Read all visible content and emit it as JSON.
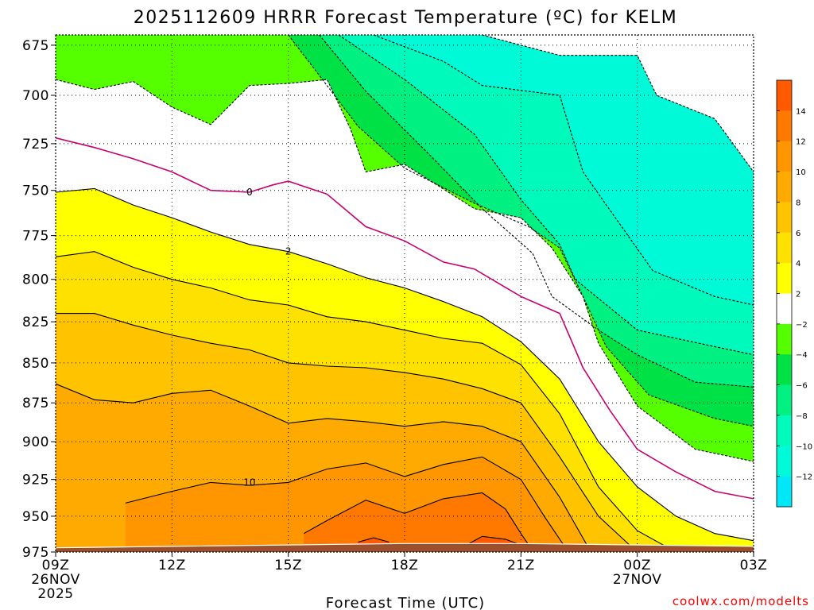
{
  "chart_data": {
    "type": "contour",
    "title": "2025112609 HRRR Forecast Temperature (ºC) for KELM",
    "xlabel": "Forecast Time (UTC)",
    "ylabel": "",
    "credit": "coolwx.com/modelts",
    "y_axis": {
      "scale": "pressure-hPa",
      "range": [
        975,
        670
      ],
      "ticks": [
        675,
        700,
        725,
        750,
        775,
        800,
        825,
        850,
        875,
        900,
        925,
        950,
        975
      ]
    },
    "x_axis": {
      "range_hours": [
        9,
        27
      ],
      "ticks": [
        {
          "hour": 9,
          "label": "09Z",
          "sub": [
            "26NOV",
            "2025"
          ]
        },
        {
          "hour": 12,
          "label": "12Z",
          "sub": []
        },
        {
          "hour": 15,
          "label": "15Z",
          "sub": []
        },
        {
          "hour": 18,
          "label": "18Z",
          "sub": []
        },
        {
          "hour": 21,
          "label": "21Z",
          "sub": []
        },
        {
          "hour": 24,
          "label": "00Z",
          "sub": [
            "27NOV"
          ]
        },
        {
          "hour": 27,
          "label": "03Z",
          "sub": []
        }
      ]
    },
    "grid": true,
    "colorbar": {
      "labels": [
        "14",
        "12",
        "10",
        "8",
        "6",
        "4",
        "2",
        "−2",
        "−4",
        "−6",
        "−8",
        "−10",
        "−12"
      ],
      "bands": [
        {
          "min": 14,
          "max": 16,
          "color": "#ff5a00"
        },
        {
          "min": 12,
          "max": 14,
          "color": "#ff7800"
        },
        {
          "min": 10,
          "max": 12,
          "color": "#ff9600"
        },
        {
          "min": 8,
          "max": 10,
          "color": "#ffaa00"
        },
        {
          "min": 6,
          "max": 8,
          "color": "#ffc300"
        },
        {
          "min": 4,
          "max": 6,
          "color": "#ffe100"
        },
        {
          "min": 2,
          "max": 4,
          "color": "#ffff00"
        },
        {
          "min": -2,
          "max": 2,
          "color": "#ffffff"
        },
        {
          "min": -4,
          "max": -2,
          "color": "#55ff00"
        },
        {
          "min": -6,
          "max": -4,
          "color": "#00e146"
        },
        {
          "min": -8,
          "max": -6,
          "color": "#00f081"
        },
        {
          "min": -10,
          "max": -8,
          "color": "#00fabb"
        },
        {
          "min": -12,
          "max": -10,
          "color": "#00fad7"
        },
        {
          "min": -14,
          "max": -12,
          "color": "#00e8f8"
        }
      ]
    },
    "zero_line_color": "#c8006e",
    "ground_color": "#9c4f2c",
    "isotherm_labels": [
      {
        "value": 0,
        "hour": 14.0,
        "p": 751
      },
      {
        "value": 2,
        "hour": 15.0,
        "p": 784
      },
      {
        "value": 10,
        "hour": 14.0,
        "p": 927
      }
    ],
    "isotherms": [
      {
        "value": -12,
        "style": "dashed",
        "points": [
          [
            20.0,
            670
          ],
          [
            22.0,
            680
          ],
          [
            24.0,
            680
          ],
          [
            24.5,
            700
          ],
          [
            26.0,
            712
          ],
          [
            27.0,
            740
          ]
        ]
      },
      {
        "value": -10,
        "style": "dashed",
        "points": [
          [
            17.2,
            670
          ],
          [
            19.0,
            683
          ],
          [
            20.0,
            695
          ],
          [
            22.0,
            700
          ],
          [
            22.6,
            740
          ],
          [
            24.4,
            795
          ],
          [
            26.0,
            810
          ],
          [
            27.0,
            815
          ]
        ]
      },
      {
        "value": -8,
        "style": "dashed",
        "points": [
          [
            16.3,
            670
          ],
          [
            18.0,
            692
          ],
          [
            19.8,
            720
          ],
          [
            21.0,
            755
          ],
          [
            22.0,
            780
          ],
          [
            22.4,
            800
          ],
          [
            24.0,
            830
          ],
          [
            26.0,
            840
          ],
          [
            27.0,
            845
          ]
        ]
      },
      {
        "value": -6,
        "style": "dashed",
        "points": [
          [
            15.8,
            670
          ],
          [
            17.0,
            698
          ],
          [
            18.6,
            730
          ],
          [
            20.0,
            760
          ],
          [
            21.3,
            785
          ],
          [
            21.8,
            810
          ],
          [
            23.0,
            830
          ],
          [
            24.0,
            845
          ],
          [
            25.5,
            862
          ],
          [
            27.0,
            865
          ]
        ]
      },
      {
        "value": -4,
        "style": "dashed",
        "points": [
          [
            15.0,
            670
          ],
          [
            15.8,
            690
          ],
          [
            16.8,
            716
          ],
          [
            18.0,
            738
          ],
          [
            19.8,
            757
          ],
          [
            21.2,
            770
          ],
          [
            22.0,
            782
          ],
          [
            22.6,
            810
          ],
          [
            23.2,
            840
          ],
          [
            24.3,
            870
          ],
          [
            26.0,
            885
          ],
          [
            27.0,
            890
          ]
        ]
      },
      {
        "value": -2,
        "style": "dashed",
        "points": [
          [
            9.0,
            692
          ],
          [
            10.0,
            697
          ],
          [
            11.0,
            693
          ],
          [
            12.0,
            706
          ],
          [
            13.0,
            715
          ],
          [
            14.0,
            695
          ],
          [
            15.0,
            694
          ],
          [
            16.0,
            692
          ],
          [
            16.6,
            717
          ],
          [
            17.0,
            740
          ],
          [
            18.0,
            736
          ],
          [
            19.8,
            760
          ],
          [
            21.0,
            765
          ],
          [
            21.8,
            782
          ],
          [
            22.6,
            810
          ],
          [
            23.0,
            838
          ],
          [
            24.0,
            877
          ],
          [
            25.5,
            905
          ],
          [
            27.0,
            913
          ]
        ]
      },
      {
        "value": 0,
        "style": "solid",
        "zero": true,
        "points": [
          [
            9.0,
            722
          ],
          [
            10.0,
            727
          ],
          [
            11.0,
            733
          ],
          [
            12.0,
            740
          ],
          [
            13.0,
            750
          ],
          [
            14.0,
            751
          ],
          [
            14.6,
            747
          ],
          [
            15.0,
            745
          ],
          [
            16.0,
            752
          ],
          [
            17.0,
            770
          ],
          [
            18.0,
            778
          ],
          [
            19.0,
            790
          ],
          [
            19.8,
            794
          ],
          [
            21.0,
            810
          ],
          [
            22.0,
            820
          ],
          [
            22.6,
            853
          ],
          [
            23.3,
            880
          ],
          [
            24.0,
            905
          ],
          [
            25.0,
            920
          ],
          [
            26.0,
            933
          ],
          [
            27.0,
            938
          ]
        ]
      },
      {
        "value": 2,
        "style": "solid",
        "points": [
          [
            9.0,
            751
          ],
          [
            10.0,
            749
          ],
          [
            11.0,
            758
          ],
          [
            12.0,
            765
          ],
          [
            13.0,
            773
          ],
          [
            14.0,
            780
          ],
          [
            15.0,
            784
          ],
          [
            16.0,
            791
          ],
          [
            17.0,
            799
          ],
          [
            18.0,
            805
          ],
          [
            19.0,
            813
          ],
          [
            20.0,
            822
          ],
          [
            21.0,
            837
          ],
          [
            22.0,
            860
          ],
          [
            23.0,
            900
          ],
          [
            24.0,
            930
          ],
          [
            25.0,
            950
          ],
          [
            26.0,
            962
          ],
          [
            27.0,
            967
          ]
        ]
      },
      {
        "value": 4,
        "style": "solid",
        "points": [
          [
            9.0,
            787
          ],
          [
            10.0,
            784
          ],
          [
            11.0,
            793
          ],
          [
            12.0,
            800
          ],
          [
            13.0,
            805
          ],
          [
            14.0,
            812
          ],
          [
            15.0,
            815
          ],
          [
            16.0,
            822
          ],
          [
            17.0,
            825
          ],
          [
            18.0,
            830
          ],
          [
            19.0,
            835
          ],
          [
            20.0,
            838
          ],
          [
            21.0,
            851
          ],
          [
            22.0,
            882
          ],
          [
            23.0,
            930
          ],
          [
            24.0,
            960
          ],
          [
            24.8,
            972
          ]
        ]
      },
      {
        "value": 6,
        "style": "solid",
        "points": [
          [
            9.0,
            820
          ],
          [
            10.0,
            820
          ],
          [
            11.0,
            827
          ],
          [
            12.0,
            833
          ],
          [
            13.0,
            838
          ],
          [
            14.0,
            842
          ],
          [
            15.0,
            850
          ],
          [
            16.0,
            852
          ],
          [
            17.0,
            853
          ],
          [
            18.0,
            856
          ],
          [
            19.0,
            860
          ],
          [
            20.0,
            866
          ],
          [
            21.0,
            875
          ],
          [
            22.0,
            910
          ],
          [
            23.0,
            950
          ],
          [
            23.8,
            970
          ]
        ]
      },
      {
        "value": 8,
        "style": "solid",
        "points": [
          [
            9.0,
            863
          ],
          [
            10.0,
            873
          ],
          [
            11.0,
            875
          ],
          [
            12.0,
            869
          ],
          [
            13.0,
            867
          ],
          [
            14.0,
            877
          ],
          [
            15.0,
            888
          ],
          [
            16.0,
            885
          ],
          [
            17.0,
            887
          ],
          [
            18.0,
            890
          ],
          [
            19.0,
            887
          ],
          [
            20.0,
            890
          ],
          [
            21.0,
            900
          ],
          [
            22.0,
            937
          ],
          [
            22.7,
            970
          ]
        ]
      },
      {
        "value": 10,
        "style": "solid",
        "points": [
          [
            10.8,
            941
          ],
          [
            12.0,
            933
          ],
          [
            13.0,
            927
          ],
          [
            14.0,
            929
          ],
          [
            15.0,
            927
          ],
          [
            16.0,
            918
          ],
          [
            17.0,
            914
          ],
          [
            18.0,
            923
          ],
          [
            19.0,
            915
          ],
          [
            20.0,
            910
          ],
          [
            21.0,
            925
          ],
          [
            21.6,
            950
          ],
          [
            22.1,
            970
          ]
        ]
      },
      {
        "value": 12,
        "style": "solid",
        "points": [
          [
            15.4,
            962
          ],
          [
            16.0,
            953
          ],
          [
            17.0,
            939
          ],
          [
            18.0,
            948
          ],
          [
            19.0,
            938
          ],
          [
            20.0,
            934
          ],
          [
            20.6,
            945
          ],
          [
            21.0,
            962
          ],
          [
            21.2,
            970
          ]
        ]
      },
      {
        "value": 14,
        "style": "solid",
        "points": [
          [
            16.8,
            968
          ],
          [
            17.2,
            965
          ],
          [
            17.6,
            968
          ]
        ]
      },
      {
        "value": 14,
        "style": "solid",
        "points": [
          [
            19.6,
            970
          ],
          [
            20.0,
            964
          ],
          [
            20.6,
            966
          ],
          [
            21.0,
            970
          ]
        ]
      }
    ],
    "ground_profile": [
      [
        9.0,
        972
      ],
      [
        12.0,
        971
      ],
      [
        15.0,
        970
      ],
      [
        18.0,
        969
      ],
      [
        21.0,
        969
      ],
      [
        24.0,
        970
      ],
      [
        27.0,
        971
      ]
    ]
  }
}
